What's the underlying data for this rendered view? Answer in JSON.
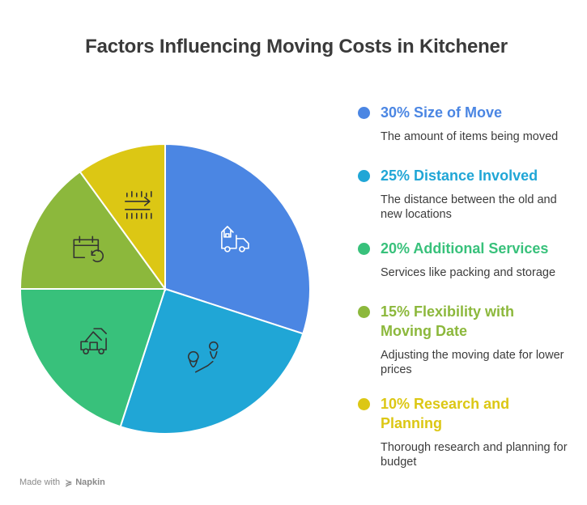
{
  "title": "Factors Influencing Moving Costs in Kitchener",
  "footer": {
    "made_with": "Made with",
    "brand": "Napkin"
  },
  "chart_data": {
    "type": "pie",
    "title": "Factors Influencing Moving Costs in Kitchener",
    "slices": [
      {
        "label": "Size of Move",
        "value": 30,
        "percent_label": "30%",
        "color": "#4b86e3",
        "icon": "moving-truck-icon",
        "description": "The amount of items being moved"
      },
      {
        "label": "Distance Involved",
        "value": 25,
        "percent_label": "25%",
        "color": "#20a6d6",
        "icon": "route-pins-icon",
        "description": "The distance between the old and new locations"
      },
      {
        "label": "Additional Services",
        "value": 20,
        "percent_label": "20%",
        "color": "#38c17b",
        "icon": "house-truck-icon",
        "description": "Services like packing and storage"
      },
      {
        "label": "Flexibility with Moving Date",
        "value": 15,
        "percent_label": "15%",
        "color": "#8cb83c",
        "icon": "calendar-refresh-icon",
        "description": "Adjusting the moving date for lower prices"
      },
      {
        "label": "Research and Planning",
        "value": 10,
        "percent_label": "10%",
        "color": "#dcc714",
        "icon": "arrow-lines-icon",
        "description": "Thorough research and planning for budget"
      }
    ]
  },
  "legend": [
    {
      "heading": "30% Size of Move",
      "color": "#4b86e3",
      "description": "The amount of items being moved"
    },
    {
      "heading": "25% Distance Involved",
      "color": "#20a6d6",
      "description": "The distance between the old and new locations"
    },
    {
      "heading": "20% Additional Services",
      "color": "#38c17b",
      "description": "Services like packing and storage"
    },
    {
      "heading": "15% Flexibility with Moving Date",
      "color": "#8cb83c",
      "description": "Adjusting the moving date for lower prices"
    },
    {
      "heading": "10% Research and Planning",
      "color": "#dcc714",
      "description": "Thorough research and planning for budget"
    }
  ]
}
